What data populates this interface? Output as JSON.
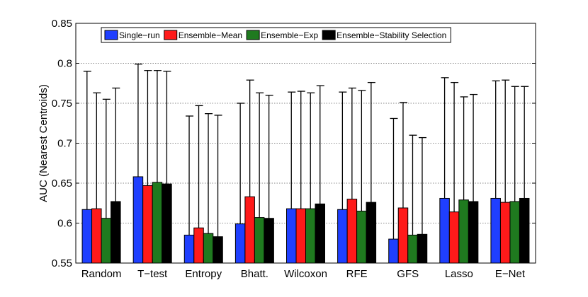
{
  "chart_data": {
    "type": "bar",
    "title": "",
    "xlabel": "",
    "ylabel": "AUC (Nearest Centroids)",
    "ylim": [
      0.55,
      0.85
    ],
    "yticks": [
      "0.55",
      "0.6",
      "0.65",
      "0.7",
      "0.75",
      "0.8",
      "0.85"
    ],
    "grid": "horizontal dotted",
    "legend_position": "top-center",
    "categories": [
      "Random",
      "T−test",
      "Entropy",
      "Bhatt.",
      "Wilcoxon",
      "RFE",
      "GFS",
      "Lasso",
      "E−Net"
    ],
    "series": [
      {
        "name": "Single−run",
        "color": "#1f3fff",
        "values": [
          0.617,
          0.658,
          0.585,
          0.599,
          0.618,
          0.617,
          0.58,
          0.631,
          0.631
        ],
        "error_upper": [
          0.79,
          0.799,
          0.734,
          0.75,
          0.764,
          0.764,
          0.731,
          0.782,
          0.778
        ]
      },
      {
        "name": "Ensemble−Mean",
        "color": "#ff1a1a",
        "values": [
          0.618,
          0.647,
          0.594,
          0.633,
          0.618,
          0.63,
          0.619,
          0.614,
          0.626
        ],
        "error_upper": [
          0.763,
          0.791,
          0.747,
          0.779,
          0.765,
          0.769,
          0.751,
          0.776,
          0.779
        ]
      },
      {
        "name": "Ensemble−Exp",
        "color": "#1f7a1f",
        "values": [
          0.606,
          0.651,
          0.587,
          0.607,
          0.618,
          0.615,
          0.585,
          0.629,
          0.627
        ],
        "error_upper": [
          0.755,
          0.791,
          0.737,
          0.763,
          0.763,
          0.766,
          0.71,
          0.758,
          0.771
        ]
      },
      {
        "name": "Ensemble−Stability Selection",
        "color": "#000000",
        "values": [
          0.627,
          0.649,
          0.583,
          0.606,
          0.624,
          0.626,
          0.586,
          0.627,
          0.631
        ],
        "error_upper": [
          0.769,
          0.79,
          0.735,
          0.76,
          0.772,
          0.776,
          0.707,
          0.761,
          0.771
        ]
      }
    ]
  }
}
